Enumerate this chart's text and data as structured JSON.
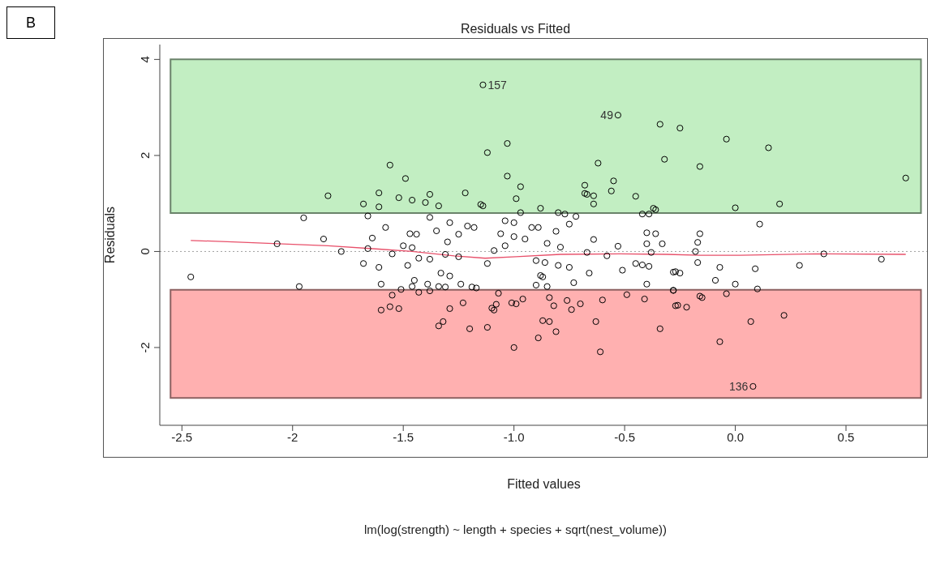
{
  "chart_data": {
    "type": "scatter",
    "title": "Residuals vs Fitted",
    "subtitle": "lm(log(strength) ~ length + species + sqrt(nest_volume))",
    "xlabel": "Fitted values",
    "ylabel": "Residuals",
    "xlim": [
      -2.6,
      0.87
    ],
    "ylim": [
      -3.62,
      4.31
    ],
    "xticks": [
      -2.5,
      -2.0,
      {
        "value": -1.5,
        "label": "-1.5"
      },
      {
        "value": -1.0,
        "label": "-1.0"
      },
      -0.5,
      {
        "value": 0,
        "label": "0.0"
      },
      0.5
    ],
    "yticks": [
      -2,
      0,
      2,
      4
    ],
    "marker": "circle",
    "series": [
      {
        "color": "#000000",
        "x": [
          -1.14,
          -0.53,
          0.08,
          -0.34,
          -0.25,
          -0.04,
          0.15,
          -0.32,
          -1.03,
          -1.12,
          -1.56,
          -1.49,
          -1.03,
          -0.62,
          -0.16,
          0.77,
          -0.97,
          -0.68,
          -1.22,
          -1.38,
          -1.4,
          -1.34,
          -1.15,
          -1.14,
          -0.99,
          -0.88,
          -0.97,
          -0.8,
          -0.77,
          -0.72,
          -0.68,
          -0.67,
          -0.64,
          -0.64,
          -0.55,
          -0.56,
          -0.45,
          -0.42,
          -0.39,
          -0.37,
          -0.36,
          -1.38,
          -1.29,
          -1.35,
          -1.21,
          -1.18,
          -1.04,
          -1.0,
          -0.92,
          -0.89,
          -0.81,
          -0.75,
          -1.3,
          -1.25,
          -1.06,
          -1.0,
          -0.95,
          -1.04,
          -0.85,
          -0.79,
          -0.64,
          -0.53,
          -0.4,
          -0.36,
          -0.4,
          -0.33,
          -1.09,
          -0.67,
          -0.38,
          -1.44,
          -1.31,
          -1.25,
          -0.58,
          -1.43,
          -1.84,
          -1.61,
          -1.52,
          -1.46,
          -1.68,
          -1.61,
          -1.95,
          -1.66,
          -1.58,
          -1.86,
          -1.64,
          -1.47,
          -2.07,
          -1.5,
          -1.46,
          -1.66,
          -1.78,
          -1.55,
          0.0,
          0.2,
          0.11,
          -0.16,
          -0.17,
          -0.18,
          0.4,
          0.66,
          -2.46,
          -1.97,
          -1.68,
          -1.61,
          -1.48,
          -1.6,
          -1.45,
          -1.46,
          -1.51,
          -1.43,
          -1.55,
          -1.56,
          -1.52,
          -1.6,
          -1.38,
          -1.12,
          -1.33,
          -1.29,
          -1.39,
          -1.34,
          -1.31,
          -1.24,
          -1.19,
          -1.17,
          -0.9,
          -0.86,
          -0.8,
          -0.75,
          -0.88,
          -0.87,
          -0.9,
          -0.85,
          -0.73,
          -0.66,
          -0.51,
          -0.45,
          -0.42,
          -0.39,
          -0.4,
          -0.28,
          -0.28,
          -1.38,
          -1.29,
          -1.23,
          -1.07,
          -1.1,
          -1.09,
          -1.08,
          -1.01,
          -0.99,
          -0.96,
          -0.84,
          -0.82,
          -0.76,
          -0.74,
          -0.7,
          -0.6,
          -0.49,
          -0.41,
          -1.32,
          -1.34,
          -1.2,
          -1.12,
          -0.87,
          -0.84,
          -0.81,
          -0.89,
          -1.0,
          -0.63,
          -0.61,
          -0.34,
          -0.27,
          -0.17,
          -0.07,
          0.09,
          0.29,
          -0.27,
          -0.25,
          -0.09,
          0.0,
          -0.28,
          0.1,
          -0.04,
          -0.16,
          -0.15,
          -0.26,
          -0.22,
          0.22,
          0.07,
          -0.07
        ],
        "values": [
          3.47,
          2.84,
          -2.81,
          2.65,
          2.57,
          2.34,
          2.16,
          1.92,
          2.25,
          2.06,
          1.8,
          1.52,
          1.57,
          1.84,
          1.77,
          1.53,
          1.35,
          1.38,
          1.22,
          1.19,
          1.02,
          0.95,
          0.98,
          0.95,
          1.1,
          0.9,
          0.81,
          0.81,
          0.78,
          0.73,
          1.21,
          1.19,
          1.16,
          0.99,
          1.47,
          1.26,
          1.15,
          0.78,
          0.78,
          0.9,
          0.87,
          0.71,
          0.6,
          0.43,
          0.53,
          0.5,
          0.64,
          0.6,
          0.5,
          0.5,
          0.42,
          0.57,
          0.2,
          0.36,
          0.37,
          0.31,
          0.26,
          0.12,
          0.17,
          0.09,
          0.25,
          0.11,
          0.39,
          0.37,
          0.16,
          0.16,
          0.02,
          -0.02,
          -0.02,
          0.36,
          -0.06,
          -0.11,
          -0.09,
          -0.14,
          1.16,
          1.22,
          1.12,
          1.07,
          0.99,
          0.93,
          0.7,
          0.74,
          0.5,
          0.26,
          0.28,
          0.37,
          0.16,
          0.12,
          0.08,
          0.06,
          0.0,
          -0.05,
          0.91,
          0.99,
          0.57,
          0.37,
          0.19,
          0.0,
          -0.05,
          -0.16,
          -0.53,
          -0.73,
          -0.25,
          -0.33,
          -0.29,
          -0.68,
          -0.6,
          -0.73,
          -0.79,
          -0.85,
          -0.91,
          -1.15,
          -1.19,
          -1.22,
          -0.16,
          -0.25,
          -0.45,
          -0.51,
          -0.68,
          -0.73,
          -0.74,
          -0.68,
          -0.74,
          -0.76,
          -0.19,
          -0.23,
          -0.29,
          -0.33,
          -0.5,
          -0.53,
          -0.7,
          -0.73,
          -0.65,
          -0.45,
          -0.39,
          -0.25,
          -0.28,
          -0.31,
          -0.68,
          -0.43,
          -0.81,
          -0.82,
          -1.19,
          -1.07,
          -0.87,
          -1.18,
          -1.22,
          -1.1,
          -1.07,
          -1.09,
          -0.99,
          -0.96,
          -1.13,
          -1.02,
          -1.21,
          -1.09,
          -1.01,
          -0.9,
          -0.99,
          -1.46,
          -1.55,
          -1.61,
          -1.58,
          -1.44,
          -1.46,
          -1.67,
          -1.8,
          -2.0,
          -1.46,
          -2.09,
          -1.61,
          -1.13,
          -0.23,
          -0.33,
          -0.36,
          -0.29,
          -0.42,
          -0.45,
          -0.6,
          -0.68,
          -0.81,
          -0.78,
          -0.88,
          -0.93,
          -0.96,
          -1.12,
          -1.16,
          -1.33,
          -1.46,
          -1.88
        ]
      },
      {
        "type": "line",
        "marker": "none",
        "color": "#e8506a",
        "x": [
          -2.46,
          -2.27,
          -1.84,
          -1.61,
          -1.46,
          -1.27,
          -1.13,
          -0.99,
          -0.79,
          -0.52,
          -0.31,
          -0.16,
          0.02,
          0.36,
          0.77
        ],
        "values": [
          0.23,
          0.2,
          0.12,
          0.05,
          0.0,
          -0.09,
          -0.14,
          -0.11,
          -0.06,
          -0.05,
          -0.06,
          -0.08,
          -0.08,
          -0.05,
          -0.06
        ]
      }
    ],
    "ref_lines": [
      {
        "axis": "y",
        "value": 0,
        "color": "#a0a0a0",
        "line_style": "dotted"
      }
    ],
    "bands": [
      {
        "axis": "y",
        "from": 0.8,
        "to": 4,
        "color": "#c2eec2"
      },
      {
        "axis": "y",
        "from": -3.05,
        "to": -0.8,
        "color": "#ffb0b0"
      }
    ],
    "annotations": [
      "B",
      {
        "text": "157",
        "x": -1.14,
        "y": 3.47
      },
      {
        "text": "49",
        "x": -0.53,
        "y": 2.84
      },
      {
        "text": "136",
        "x": 0.08,
        "y": -2.81
      }
    ]
  }
}
